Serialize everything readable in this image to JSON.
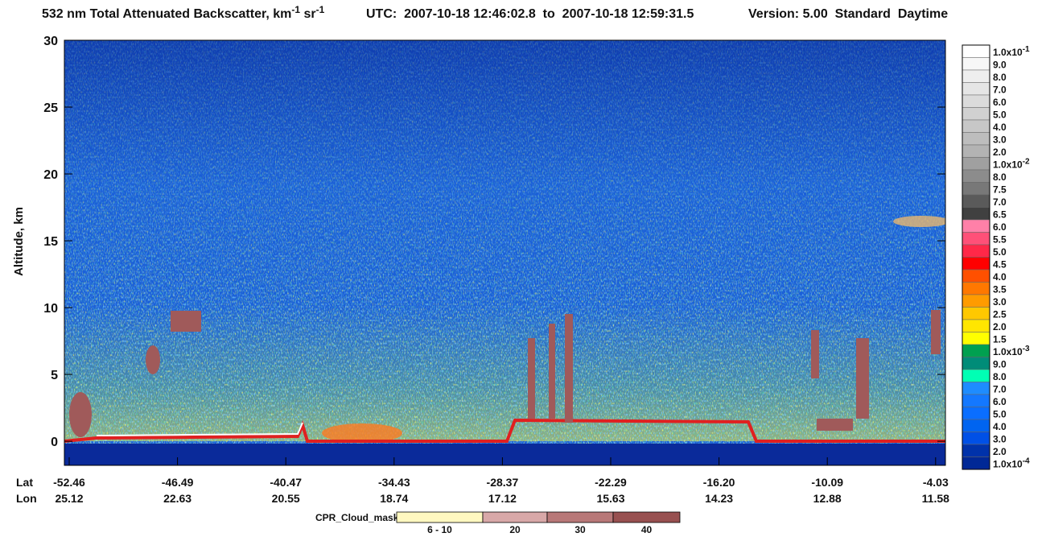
{
  "chart_data": {
    "type": "heatmap",
    "title": {
      "text": "532 nm Total Attenuated Backscatter, km",
      "sup1": "-1",
      "mid": " sr",
      "sup2": "-1"
    },
    "time_range": "UTC:  2007-10-18 12:46:02.8  to  2007-10-18 12:59:31.5",
    "version": "Version: 5.00  Standard  Daytime",
    "ylabel": "Altitude, km",
    "ylim": [
      -1.8,
      30
    ],
    "yticks": [
      0,
      5,
      10,
      15,
      20,
      25,
      30
    ],
    "x_rows": [
      {
        "name": "Lat",
        "ticks": [
          "-52.46",
          "-46.49",
          "-40.47",
          "-34.43",
          "-28.37",
          "-22.29",
          "-16.20",
          "-10.09",
          "-4.03"
        ]
      },
      {
        "name": "Lon",
        "ticks": [
          "25.12",
          "22.63",
          "20.55",
          "18.74",
          "17.12",
          "15.63",
          "14.23",
          "12.88",
          "11.58"
        ]
      }
    ],
    "colorbar": {
      "labels": [
        {
          "text": "1.0x10",
          "sup": "-1"
        },
        "9.0",
        "8.0",
        "7.0",
        "6.0",
        "5.0",
        "4.0",
        "3.0",
        "2.0",
        {
          "text": "1.0x10",
          "sup": "-2"
        },
        "8.0",
        "7.5",
        "7.0",
        "6.5",
        "6.0",
        "5.5",
        "5.0",
        "4.5",
        "4.0",
        "3.5",
        "3.0",
        "2.5",
        "2.0",
        "1.5",
        {
          "text": "1.0x10",
          "sup": "-3"
        },
        "9.0",
        "8.0",
        "7.0",
        "6.0",
        "5.0",
        "4.0",
        "3.0",
        "2.0",
        {
          "text": "1.0x10",
          "sup": "-4"
        }
      ],
      "colors": [
        "#ffffff",
        "#f7f7f7",
        "#eeeeee",
        "#e5e5e5",
        "#dbdbdb",
        "#d1d1d1",
        "#c7c7c7",
        "#bdbdbd",
        "#b3b3b3",
        "#a0a0a0",
        "#8c8c8c",
        "#787878",
        "#5a5a5a",
        "#404040",
        "#ff80a8",
        "#ff5078",
        "#ff2848",
        "#ff0000",
        "#ff5000",
        "#ff7800",
        "#ff9b00",
        "#ffc800",
        "#ffe600",
        "#ffff00",
        "#00a050",
        "#008c78",
        "#00ffb4",
        "#1e8cff",
        "#1478ff",
        "#0a6eff",
        "#0064f0",
        "#0050e6",
        "#0032aa",
        "#002896"
      ]
    },
    "legend": {
      "title": "CPR_Cloud_mask",
      "labels": [
        "6 - 10",
        "20",
        "30",
        "40"
      ],
      "colors": [
        "#fff8c0",
        "#d8a8a8",
        "#b87878",
        "#985050"
      ]
    }
  }
}
